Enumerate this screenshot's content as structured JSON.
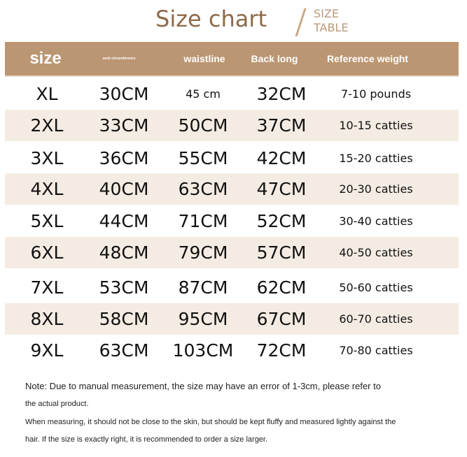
{
  "title": "Size chart",
  "subtitle_line1": "SIZE",
  "subtitle_line2": "TABLE",
  "header": {
    "size": "size",
    "neck": "neck circumference",
    "waist": "waistline",
    "back": "Back long",
    "weight": "Reference weight"
  },
  "accent_color": "#bb9672",
  "rows": [
    {
      "size": "XL",
      "neck": "30CM",
      "waist": "45 cm",
      "back": "32CM",
      "weight": "7-10 pounds"
    },
    {
      "size": "2XL",
      "neck": "33CM",
      "waist": "50CM",
      "back": "37CM",
      "weight": "10-15 catties"
    },
    {
      "size": "3XL",
      "neck": "36CM",
      "waist": "55CM",
      "back": "42CM",
      "weight": "15-20 catties"
    },
    {
      "size": "4XL",
      "neck": "40CM",
      "waist": "63CM",
      "back": "47CM",
      "weight": "20-30 catties"
    },
    {
      "size": "5XL",
      "neck": "44CM",
      "waist": "71CM",
      "back": "52CM",
      "weight": "30-40 catties"
    },
    {
      "size": "6XL",
      "neck": "48CM",
      "waist": "79CM",
      "back": "57CM",
      "weight": "40-50 catties"
    },
    {
      "size": "7XL",
      "neck": "53CM",
      "waist": "87CM",
      "back": "62CM",
      "weight": "50-60 catties"
    },
    {
      "size": "8XL",
      "neck": "58CM",
      "waist": "95CM",
      "back": "67CM",
      "weight": "60-70 catties"
    },
    {
      "size": "9XL",
      "neck": "63CM",
      "waist": "103CM",
      "back": "72CM",
      "weight": "70-80 catties"
    }
  ],
  "notes": [
    "Note: Due to manual measurement, the size may have an error of 1-3cm, please refer to",
    "the actual product.",
    "When measuring, it should not be close to the skin, but should be kept fluffy and measured lightly against the",
    "hair. If the size is exactly right, it is recommended to order a size larger."
  ]
}
